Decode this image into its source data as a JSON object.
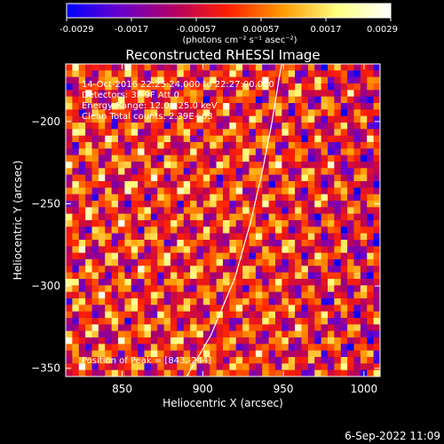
{
  "colorbar": {
    "ticks": [
      "-0.0029",
      "-0.0017",
      "-0.00057",
      "0.00057",
      "0.0017",
      "0.0029"
    ],
    "unit_label": "(photons cm⁻² s⁻¹ asec⁻²)",
    "colors": [
      "#0000ff",
      "#6a00cc",
      "#b30063",
      "#ff2000",
      "#ff9a00",
      "#ffff80",
      "#ffffff"
    ]
  },
  "chart_data": {
    "type": "heatmap",
    "title": "Reconstructed RHESSI Image",
    "xlabel": "Heliocentric X (arcsec)",
    "ylabel": "Heliocentric Y (arcsec)",
    "xlim": [
      815,
      1010
    ],
    "ylim": [
      -355,
      -165
    ],
    "x_ticks": [
      850,
      900,
      950,
      1000
    ],
    "y_ticks": [
      -200,
      -250,
      -300,
      -350
    ],
    "value_range": [
      -0.0029,
      0.0029
    ],
    "grid": false,
    "annotations": [
      "14-Oct-2016 22:25:24.000 to 22:27:00.000",
      "Detectors: 3F 9F  Att 0",
      "Energy Range: 12.0 - 25.0 keV",
      "Clean     Total counts: 2.39E+03"
    ],
    "peak_label": "Position of Peak = [843,-244]",
    "peak": [
      843,
      -244
    ],
    "limb_points": [
      [
        890,
        -355
      ],
      [
        905,
        -330
      ],
      [
        920,
        -295
      ],
      [
        930,
        -260
      ],
      [
        937,
        -230
      ],
      [
        943,
        -200
      ],
      [
        948,
        -170
      ],
      [
        950,
        -160
      ]
    ]
  },
  "footer": {
    "timestamp": "6-Sep-2022 11:09"
  }
}
